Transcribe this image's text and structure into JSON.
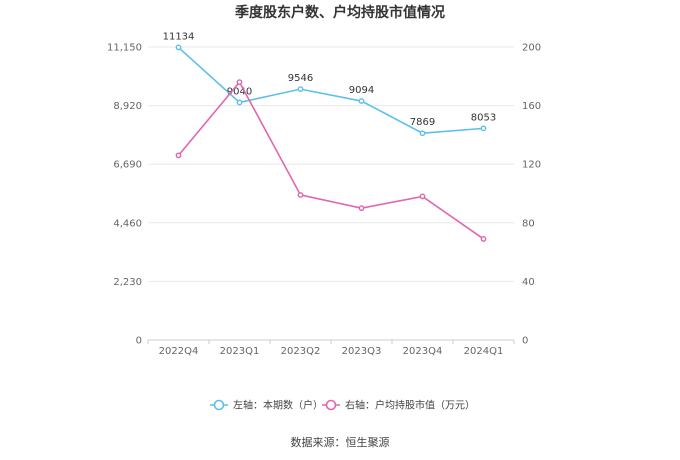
{
  "chart_data": {
    "type": "line",
    "title": "季度股东户数、户均持股市值情况",
    "categories": [
      "2022Q4",
      "2023Q1",
      "2023Q2",
      "2023Q3",
      "2023Q4",
      "2024Q1"
    ],
    "series": [
      {
        "name": "左轴：本期数（户）",
        "axis": "left",
        "color": "#5bc0eb",
        "values": [
          11134,
          9040,
          9546,
          9094,
          7869,
          8053
        ],
        "labels": [
          "11134",
          "9040",
          "9546",
          "9094",
          "7869",
          "8053"
        ]
      },
      {
        "name": "右轴：户均持股市值（万元）",
        "axis": "right",
        "color": "#e066b0",
        "values": [
          126,
          176,
          99,
          90,
          98,
          69
        ]
      }
    ],
    "y_left": {
      "min": 0,
      "max": 11150,
      "ticks": [
        "0",
        "2,230",
        "4,460",
        "6,690",
        "8,920",
        "11,150"
      ]
    },
    "y_right": {
      "min": 0,
      "max": 200,
      "ticks": [
        "0",
        "40",
        "80",
        "120",
        "160",
        "200"
      ]
    },
    "grid": true,
    "legend_position": "bottom"
  },
  "source": "数据来源：恒生聚源"
}
